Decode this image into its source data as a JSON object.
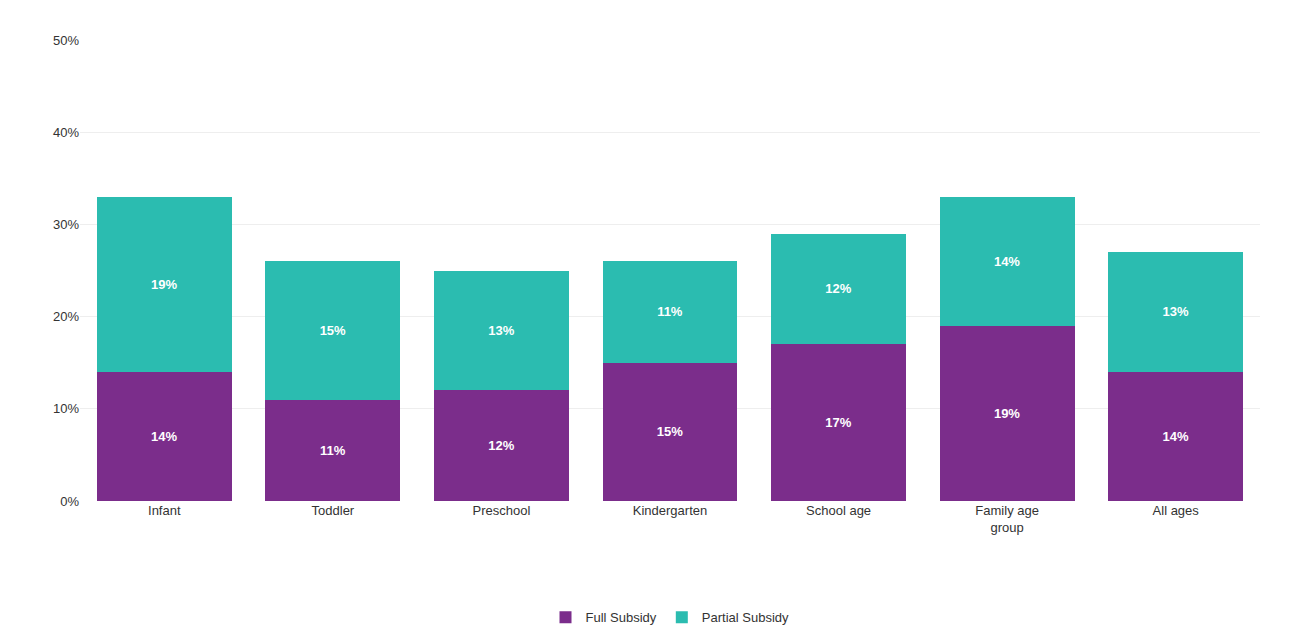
{
  "chart_data": {
    "type": "bar",
    "categories": [
      "Infant",
      "Toddler",
      "Preschool",
      "Kindergarten",
      "School age",
      "Family age\ngroup",
      "All ages"
    ],
    "series": [
      {
        "name": "Full Subsidy",
        "color": "#7B2D8B",
        "values": [
          14,
          11,
          12,
          15,
          17,
          19,
          14
        ],
        "value_labels": [
          "14%",
          "11%",
          "12%",
          "15%",
          "17%",
          "19%",
          "14%"
        ]
      },
      {
        "name": "Partial Subsidy",
        "color": "#2BBCB0",
        "values": [
          19,
          15,
          13,
          11,
          12,
          14,
          13
        ],
        "value_labels": [
          "19%",
          "15%",
          "13%",
          "11%",
          "12%",
          "14%",
          "13%"
        ]
      }
    ],
    "stacked": true,
    "data_labels": true,
    "ylim": [
      0,
      50
    ],
    "yticks": [
      {
        "value": 0,
        "label": "0%"
      },
      {
        "value": 10,
        "label": "10%"
      },
      {
        "value": 20,
        "label": "20%"
      },
      {
        "value": 30,
        "label": "30%"
      },
      {
        "value": 40,
        "label": "40%"
      },
      {
        "value": 50,
        "label": "50%"
      }
    ],
    "grid": true,
    "legend": "bottom"
  }
}
